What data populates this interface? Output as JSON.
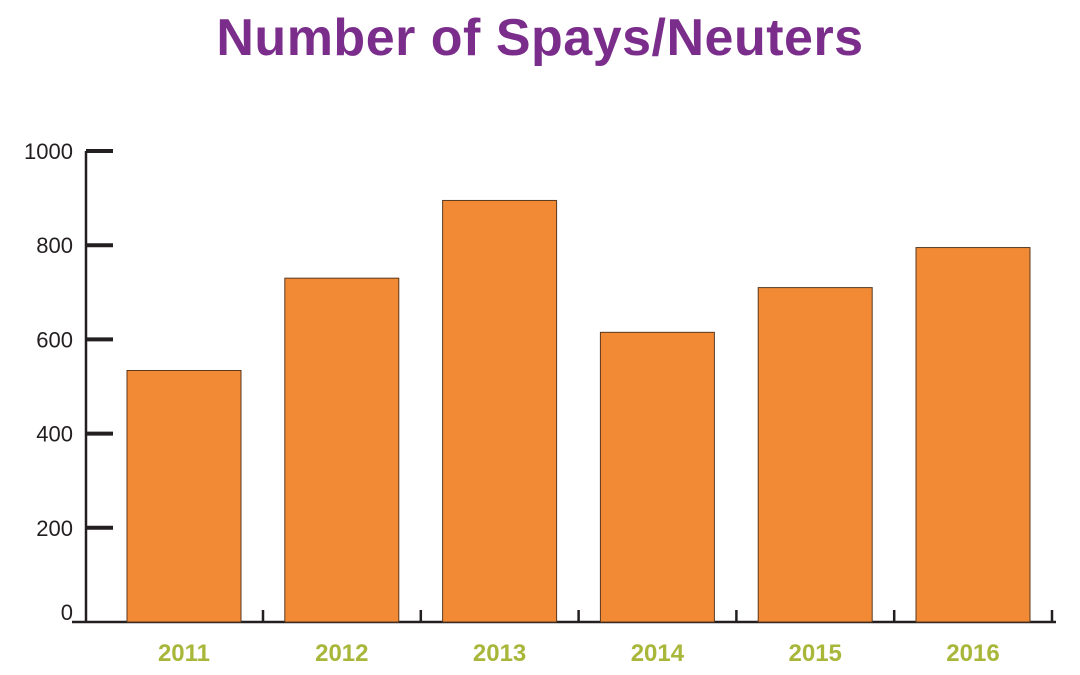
{
  "chart_data": {
    "type": "bar",
    "title": "Number of Spays/Neuters",
    "categories": [
      "2011",
      "2012",
      "2013",
      "2014",
      "2015",
      "2016"
    ],
    "values": [
      534,
      730,
      895,
      615,
      710,
      795
    ],
    "yticks": [
      "0",
      "200",
      "400",
      "600",
      "800",
      "1000"
    ],
    "ylim": [
      0,
      1000
    ],
    "xlabel": "",
    "ylabel": "",
    "grid": false,
    "colors": {
      "bar": "#f28a35",
      "title": "#7b2d8b",
      "xlabels": "#a8b73a",
      "axis": "#231f20"
    }
  }
}
